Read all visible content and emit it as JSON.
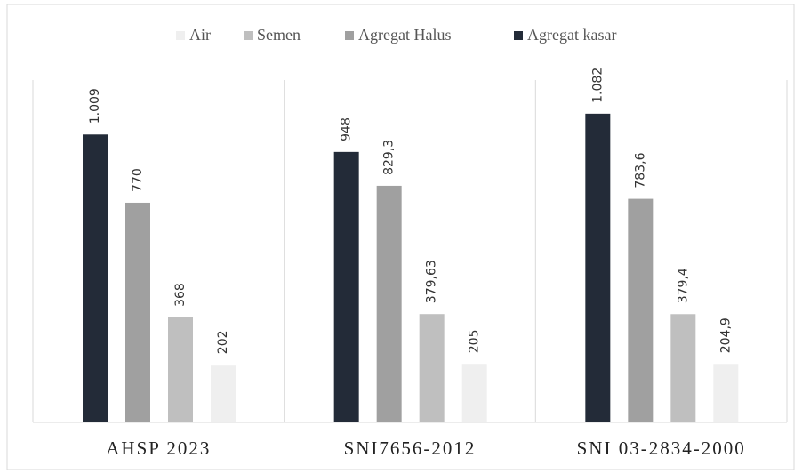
{
  "chart_data": {
    "type": "bar",
    "categories": [
      "AHSP 2023",
      "SNI7656-2012",
      "SNI 03-2834-2000"
    ],
    "series": [
      {
        "name": "Air",
        "color": "#efefef",
        "values": [
          202,
          205,
          204.9
        ],
        "value_labels": [
          "202",
          "205",
          "204,9"
        ]
      },
      {
        "name": "Semen",
        "color": "#bfbfbf",
        "values": [
          368,
          379.63,
          379.4
        ],
        "value_labels": [
          "368",
          "379,63",
          "379,4"
        ]
      },
      {
        "name": "Agregat Halus",
        "color": "#a0a0a0",
        "values": [
          770,
          829.3,
          783.6
        ],
        "value_labels": [
          "770",
          "829,3",
          "783,6"
        ]
      },
      {
        "name": "Agregat kasar",
        "color": "#232b38",
        "values": [
          1009,
          948,
          1082
        ],
        "value_labels": [
          "1.009",
          "948",
          "1.082"
        ]
      }
    ],
    "ylim": [
      0,
      1200
    ]
  }
}
